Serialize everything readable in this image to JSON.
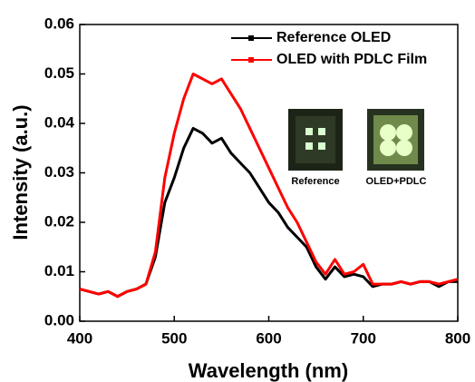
{
  "chart_data": {
    "type": "line",
    "x_label": "Wavelength (nm)",
    "y_label": "Intensity (a.u.)",
    "annotations": [
      "Reference",
      "OLED+PDLC"
    ],
    "x": [
      400,
      410,
      420,
      430,
      440,
      450,
      460,
      470,
      480,
      490,
      500,
      510,
      520,
      530,
      540,
      550,
      560,
      570,
      580,
      590,
      600,
      610,
      620,
      630,
      640,
      650,
      660,
      670,
      680,
      690,
      700,
      710,
      720,
      730,
      740,
      750,
      760,
      770,
      780,
      790,
      800
    ],
    "series": [
      {
        "name": "Reference OLED",
        "color": "#000000",
        "values": [
          0.0065,
          0.006,
          0.0055,
          0.006,
          0.005,
          0.006,
          0.0065,
          0.0075,
          0.013,
          0.024,
          0.029,
          0.035,
          0.039,
          0.038,
          0.036,
          0.037,
          0.034,
          0.032,
          0.03,
          0.027,
          0.024,
          0.022,
          0.019,
          0.017,
          0.015,
          0.011,
          0.0085,
          0.011,
          0.009,
          0.0095,
          0.009,
          0.007,
          0.0075,
          0.0075,
          0.008,
          0.0075,
          0.008,
          0.008,
          0.007,
          0.008,
          0.008
        ]
      },
      {
        "name": "OLED with PDLC Film",
        "color": "#ff0000",
        "values": [
          0.0065,
          0.006,
          0.0055,
          0.006,
          0.005,
          0.006,
          0.0065,
          0.0075,
          0.014,
          0.029,
          0.038,
          0.045,
          0.05,
          0.049,
          0.048,
          0.049,
          0.046,
          0.043,
          0.039,
          0.035,
          0.031,
          0.027,
          0.023,
          0.02,
          0.016,
          0.012,
          0.0095,
          0.0125,
          0.0095,
          0.01,
          0.0115,
          0.0075,
          0.0075,
          0.0075,
          0.008,
          0.0075,
          0.008,
          0.008,
          0.0075,
          0.008,
          0.0085
        ]
      }
    ],
    "xlim": [
      400,
      800
    ],
    "xticks": [
      400,
      500,
      600,
      700,
      800
    ],
    "ylim": [
      0,
      0.06
    ],
    "yticks": [
      {
        "value": 0,
        "label": "0.00"
      },
      {
        "value": 0.01,
        "label": "0.01"
      },
      {
        "value": 0.02,
        "label": "0.02"
      },
      {
        "value": 0.03,
        "label": "0.03"
      },
      {
        "value": 0.04,
        "label": "0.04"
      },
      {
        "value": 0.05,
        "label": "0.05"
      },
      {
        "value": 0.06,
        "label": "0.06"
      }
    ],
    "legend": "upper right"
  }
}
